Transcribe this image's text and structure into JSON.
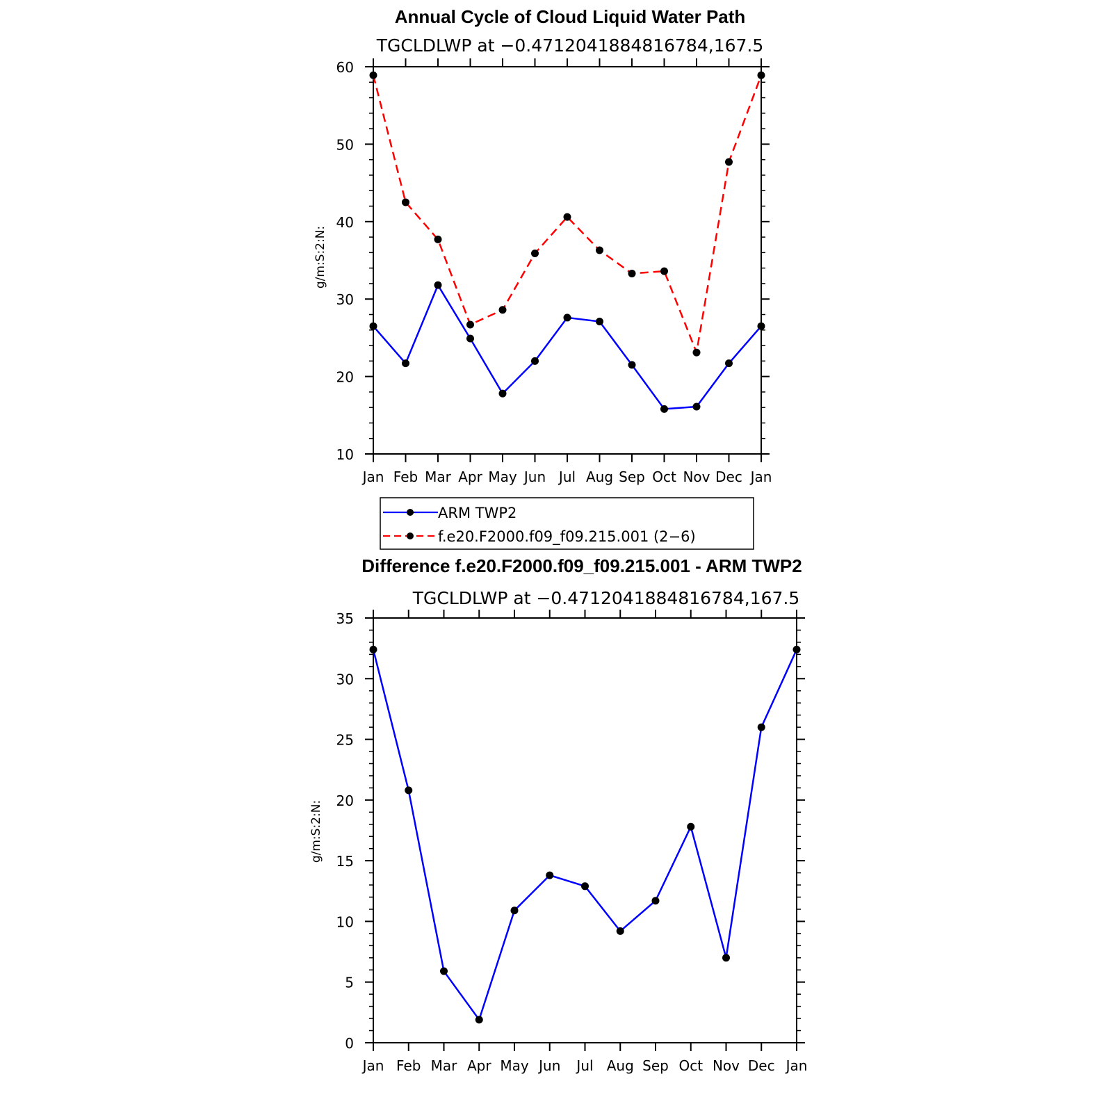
{
  "chart_data": [
    {
      "type": "line",
      "title": "Annual Cycle of Cloud Liquid Water Path",
      "subtitle": "TGCLDLWP  at  −0.4712041884816784,167.5",
      "xlabel": "",
      "ylabel": "g/m:S:2:N:",
      "categories": [
        "Jan",
        "Feb",
        "Mar",
        "Apr",
        "May",
        "Jun",
        "Jul",
        "Aug",
        "Sep",
        "Oct",
        "Nov",
        "Dec",
        "Jan"
      ],
      "ylim": [
        10,
        60
      ],
      "yticks": [
        10,
        20,
        30,
        40,
        50,
        60
      ],
      "series": [
        {
          "name": "ARM  TWP2",
          "color": "#0000ff",
          "dashed": false,
          "values": [
            26.5,
            21.7,
            31.8,
            24.9,
            17.8,
            22.0,
            27.6,
            27.1,
            21.5,
            15.8,
            16.1,
            21.7,
            26.5
          ]
        },
        {
          "name": "f.e20.F2000.f09_f09.215.001 (2−6)",
          "color": "#ff0000",
          "dashed": true,
          "values": [
            58.9,
            42.5,
            37.7,
            26.7,
            28.6,
            35.9,
            40.6,
            36.3,
            33.3,
            33.6,
            23.1,
            47.7,
            58.9
          ]
        }
      ],
      "legend": {
        "placement": "bottom",
        "entries": [
          "ARM  TWP2",
          "f.e20.F2000.f09_f09.215.001 (2−6)"
        ]
      }
    },
    {
      "type": "line",
      "title": "Difference f.e20.F2000.f09_f09.215.001 - ARM TWP2",
      "subtitle": "TGCLDLWP  at  −0.4712041884816784,167.5",
      "xlabel": "",
      "ylabel": "g/m:S:2:N:",
      "categories": [
        "Jan",
        "Feb",
        "Mar",
        "Apr",
        "May",
        "Jun",
        "Jul",
        "Aug",
        "Sep",
        "Oct",
        "Nov",
        "Dec",
        "Jan"
      ],
      "ylim": [
        0,
        35
      ],
      "yticks": [
        0,
        5,
        10,
        15,
        20,
        25,
        30,
        35
      ],
      "series": [
        {
          "name": "Difference",
          "color": "#0000ff",
          "dashed": false,
          "values": [
            32.4,
            20.8,
            5.9,
            1.9,
            10.9,
            13.8,
            12.9,
            9.2,
            11.7,
            17.8,
            7.0,
            26.0,
            32.4
          ]
        }
      ]
    }
  ]
}
